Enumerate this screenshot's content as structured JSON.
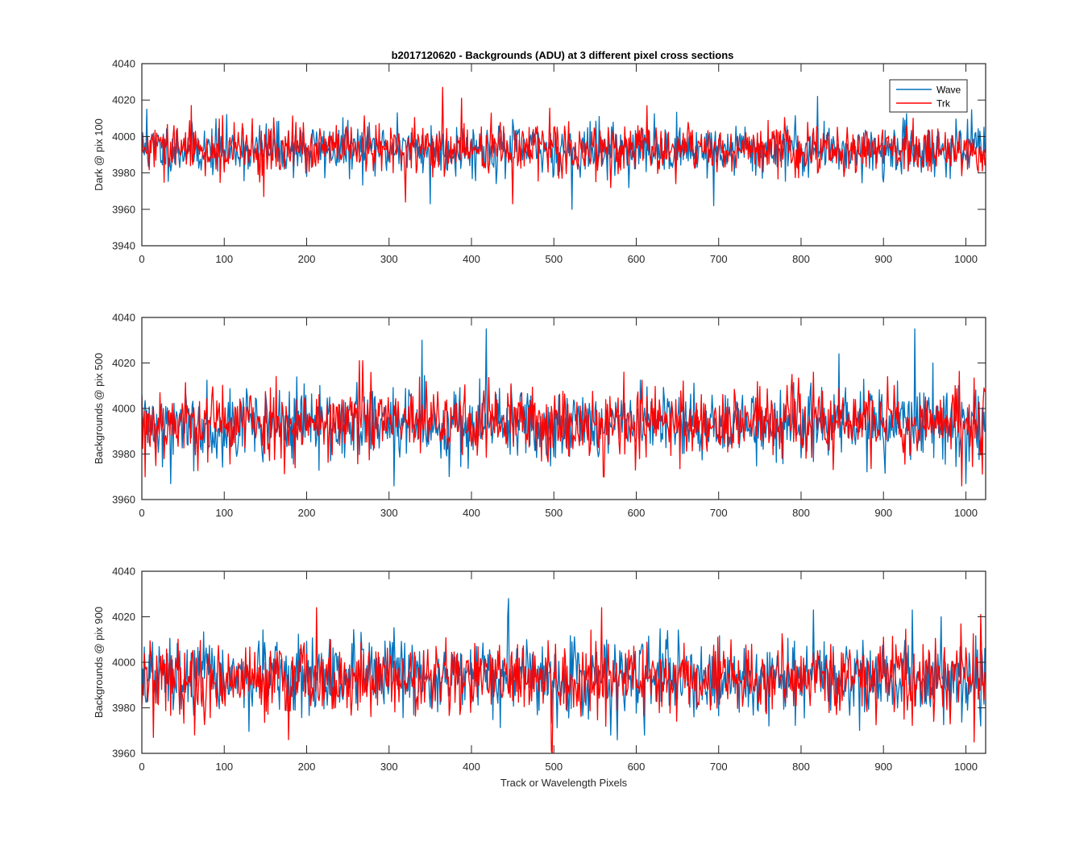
{
  "colors": {
    "wave": "#0072BD",
    "trk": "#FF0000",
    "axis": "#262626"
  },
  "figure_title": "b2017120620 - Backgrounds (ADU) at 3 different pixel cross sections",
  "legend": {
    "placement": "top-right",
    "entries": [
      "Wave",
      "Trk"
    ]
  },
  "chart_data": [
    {
      "type": "line",
      "title": "b2017120620 - Backgrounds (ADU) at 3 different pixel cross sections",
      "xlabel": "",
      "ylabel": "Dark @ pix 100",
      "xlim": [
        0,
        1024
      ],
      "ylim": [
        3940,
        4040
      ],
      "xticks": [
        "0",
        "100",
        "200",
        "300",
        "400",
        "500",
        "600",
        "700",
        "800",
        "900",
        "1000"
      ],
      "yticks": [
        "3940",
        "3960",
        "3980",
        "4000",
        "4020",
        "4040"
      ],
      "grid": false,
      "legend": "top-right",
      "n_points": 1024,
      "series": [
        {
          "name": "Wave",
          "mean": 3993,
          "spread": 7,
          "seed": 11,
          "spikes": [
            [
              6,
              4015
            ],
            [
              200,
              3978
            ],
            [
              310,
              4013
            ],
            [
              350,
              3963
            ],
            [
              395,
              3994
            ],
            [
              522,
              3960
            ],
            [
              694,
              3962
            ],
            [
              820,
              4022
            ],
            [
              900,
              3975
            ],
            [
              1000,
              3987
            ]
          ]
        },
        {
          "name": "Trk",
          "mean": 3993,
          "spread": 7,
          "seed": 29,
          "spikes": [
            [
              60,
              4017
            ],
            [
              148,
              3967
            ],
            [
              320,
              3964
            ],
            [
              365,
              4027
            ],
            [
              388,
              4021
            ],
            [
              450,
              3963
            ],
            [
              618,
              3984
            ],
            [
              936,
              4010
            ],
            [
              1020,
              3981
            ]
          ]
        }
      ]
    },
    {
      "type": "line",
      "xlabel": "",
      "ylabel": "Backgrounds @ pix 500",
      "xlim": [
        0,
        1024
      ],
      "ylim": [
        3960,
        4040
      ],
      "xticks": [
        "0",
        "100",
        "200",
        "300",
        "400",
        "500",
        "600",
        "700",
        "800",
        "900",
        "1000"
      ],
      "yticks": [
        "3960",
        "3980",
        "4000",
        "4020",
        "4040"
      ],
      "grid": false,
      "n_points": 1024,
      "series": [
        {
          "name": "Wave",
          "mean": 3993,
          "spread": 8,
          "seed": 41,
          "spikes": [
            [
              35,
              3967
            ],
            [
              340,
              4030
            ],
            [
              418,
              4035
            ],
            [
              306,
              3966
            ],
            [
              846,
              4024
            ],
            [
              938,
              4035
            ],
            [
              960,
              4020
            ],
            [
              1000,
              3967
            ]
          ]
        },
        {
          "name": "Trk",
          "mean": 3994,
          "spread": 8,
          "seed": 53,
          "spikes": [
            [
              4,
              3970
            ],
            [
              264,
              4021
            ],
            [
              268,
              4021
            ],
            [
              560,
              3970
            ],
            [
              995,
              3966
            ],
            [
              1022,
              4009
            ],
            [
              1080,
              3980
            ],
            [
              905,
              4014
            ]
          ]
        }
      ]
    },
    {
      "type": "line",
      "xlabel": "Track or Wavelength Pixels",
      "ylabel": "Backgrounds @ pix 900",
      "xlim": [
        0,
        1024
      ],
      "ylim": [
        3960,
        4040
      ],
      "xticks": [
        "0",
        "100",
        "200",
        "300",
        "400",
        "500",
        "600",
        "700",
        "800",
        "900",
        "1000"
      ],
      "yticks": [
        "3960",
        "3980",
        "4000",
        "4020",
        "4040"
      ],
      "grid": false,
      "n_points": 1024,
      "series": [
        {
          "name": "Wave",
          "mean": 3993,
          "spread": 8,
          "seed": 67,
          "spikes": [
            [
              445,
              4028
            ],
            [
              815,
              4023
            ],
            [
              935,
              4023
            ],
            [
              610,
              3968
            ],
            [
              970,
              4020
            ],
            [
              1018,
              3972
            ]
          ]
        },
        {
          "name": "Trk",
          "mean": 3993,
          "spread": 8,
          "seed": 79,
          "spikes": [
            [
              14,
              3967
            ],
            [
              178,
              3966
            ],
            [
              212,
              4024
            ],
            [
              497,
              3961
            ],
            [
              498,
              3960
            ],
            [
              558,
              4024
            ],
            [
              1010,
              3965
            ],
            [
              1018,
              4021
            ]
          ]
        }
      ]
    }
  ]
}
